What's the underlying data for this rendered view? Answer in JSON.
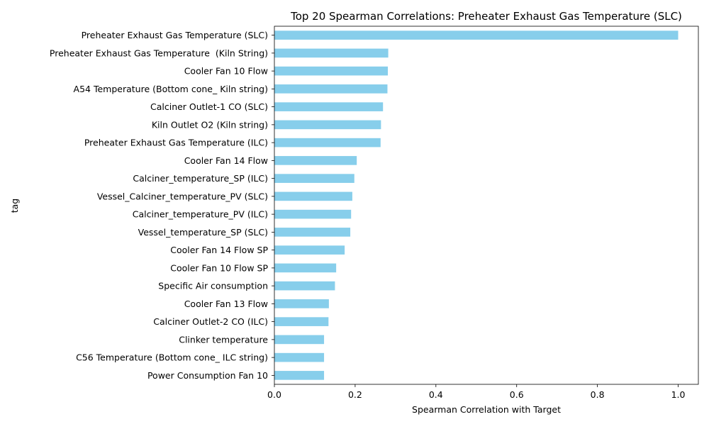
{
  "chart_data": {
    "type": "bar",
    "orientation": "horizontal",
    "title": "Top 20 Spearman Correlations: Preheater Exhaust Gas Temperature (SLC)",
    "xlabel": "Spearman Correlation with Target",
    "ylabel": "tag",
    "xlim": [
      0.0,
      1.05
    ],
    "xticks": [
      0.0,
      0.2,
      0.4,
      0.6,
      0.8,
      1.0
    ],
    "xtick_labels": [
      "0.0",
      "0.2",
      "0.4",
      "0.6",
      "0.8",
      "1.0"
    ],
    "grid": false,
    "legend": "none",
    "bar_color": "#87ceeb",
    "categories": [
      "Preheater Exhaust Gas Temperature (SLC)",
      "Preheater Exhaust Gas Temperature  (Kiln String)",
      "Cooler Fan 10 Flow",
      "A54 Temperature (Bottom cone_ Kiln string)",
      "Calciner Outlet-1 CO (SLC)",
      "Kiln Outlet O2 (Kiln string)",
      "Preheater Exhaust Gas Temperature (ILC)",
      "Cooler Fan 14 Flow",
      "Calciner_temperature_SP (ILC)",
      "Vessel_Calciner_temperature_PV (SLC)",
      "Calciner_temperature_PV (ILC)",
      "Vessel_temperature_SP (SLC)",
      "Cooler Fan 14 Flow SP",
      "Cooler Fan 10 Flow SP",
      "Specific Air consumption",
      "Cooler Fan 13 Flow",
      "Calciner Outlet-2 CO (ILC)",
      "Clinker temperature",
      "C56 Temperature (Bottom cone_ ILC string)",
      "Power Consumption Fan 10"
    ],
    "values": [
      1.0,
      0.282,
      0.281,
      0.28,
      0.269,
      0.264,
      0.263,
      0.204,
      0.198,
      0.193,
      0.19,
      0.188,
      0.174,
      0.153,
      0.15,
      0.135,
      0.134,
      0.123,
      0.123,
      0.123
    ]
  }
}
